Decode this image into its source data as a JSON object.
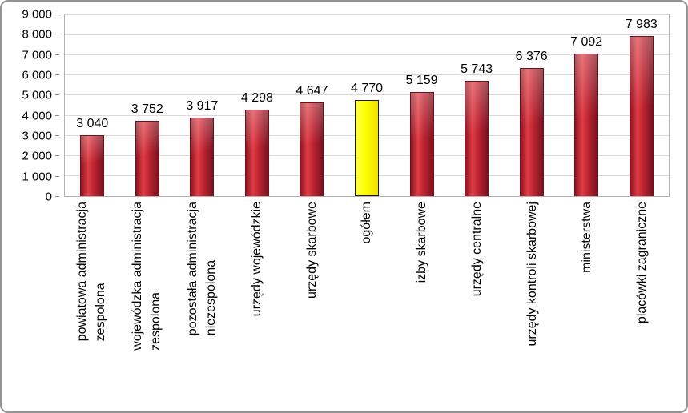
{
  "chart_data": {
    "type": "bar",
    "title": "",
    "xlabel": "",
    "ylabel": "",
    "categories": [
      "powiatowa administracja\nzespolona",
      "wojewódzka administracja\nzespolona",
      "pozostała administracja\nniezespolona",
      "urzędy wojewódzkie",
      "urzędy skarbowe",
      "ogółem",
      "izby skarbowe",
      "urzędy centralne",
      "urzędy kontroli skarbowej",
      "ministerstwa",
      "placówki zagraniczne"
    ],
    "values": [
      3040,
      3752,
      3917,
      4298,
      4647,
      4770,
      5159,
      5743,
      6376,
      7092,
      7983
    ],
    "value_labels": [
      "3 040",
      "3 752",
      "3 917",
      "4 298",
      "4 647",
      "4 770",
      "5 159",
      "5 743",
      "6 376",
      "7 092",
      "7 983"
    ],
    "ylim": [
      0,
      9000
    ],
    "ytick_step": 1000,
    "ytick_labels": [
      "0",
      "1 000",
      "2 000",
      "3 000",
      "4 000",
      "5 000",
      "6 000",
      "7 000",
      "8 000",
      "9 000"
    ],
    "grid": "horizontal",
    "legend": "none",
    "bar_color": "#c0242f",
    "bar_border_color": "#6e0f1a",
    "highlight_index": 5,
    "highlight_category": "ogółem",
    "highlight_color": "#ffff00",
    "highlight_border_color": "#1a1a1a",
    "category_label_orientation": "vertical"
  }
}
